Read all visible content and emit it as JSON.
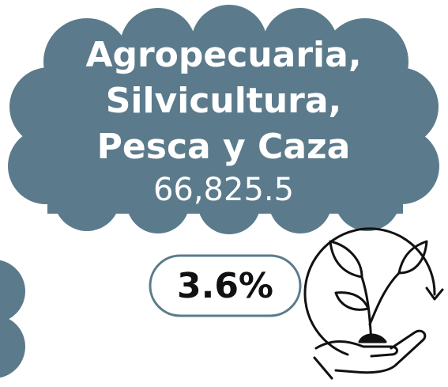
{
  "title": [
    "Agropecuaria,",
    "Silvicultura,",
    "Pesca y Caza"
  ],
  "value": "66,825.5",
  "change": "3.6%"
}
